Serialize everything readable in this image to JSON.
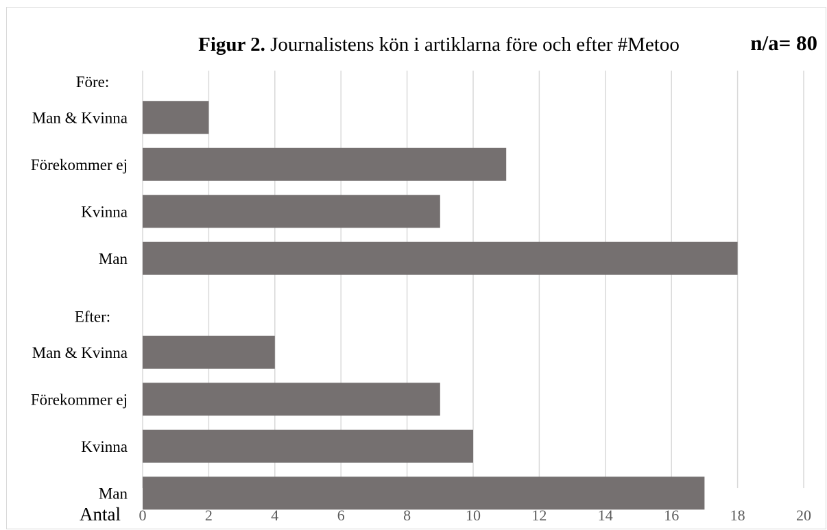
{
  "chart_data": {
    "type": "bar",
    "orientation": "horizontal",
    "title": {
      "bold": "Figur 2.",
      "text": "Journalistens kön i artiklarna före och efter #Metoo"
    },
    "note": "n/a= 80",
    "xlabel": "Antal",
    "xlim": [
      0,
      20
    ],
    "xticks": [
      "0",
      "2",
      "4",
      "6",
      "8",
      "10",
      "12",
      "14",
      "16",
      "18",
      "20"
    ],
    "grid": true,
    "bar_color": "#757070",
    "groups": [
      {
        "label": "Före:",
        "categories": [
          "Man & Kvinna",
          "Förekommer ej",
          "Kvinna",
          "Man"
        ],
        "values": [
          2,
          11,
          9,
          18
        ]
      },
      {
        "label": "Efter:",
        "categories": [
          "Man & Kvinna",
          "Förekommer ej",
          "Kvinna",
          "Man"
        ],
        "values": [
          4,
          9,
          10,
          17
        ]
      }
    ]
  }
}
